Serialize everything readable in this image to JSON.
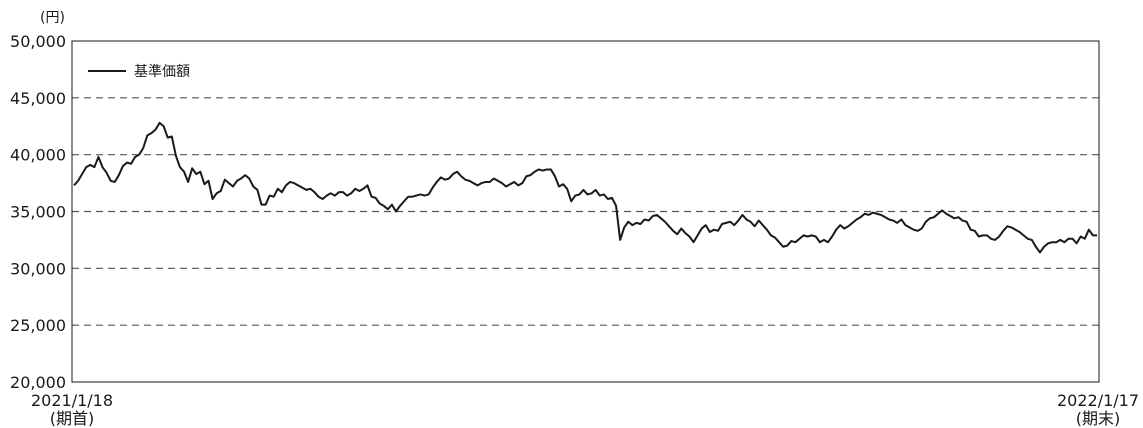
{
  "chart_data": {
    "type": "line",
    "unit_label": "(円)",
    "legend_label": "基準価額",
    "legend_position": "top-left",
    "grid": "horizontal-dashed",
    "ylim": [
      20000,
      50000
    ],
    "yticks": [
      "20,000",
      "25,000",
      "30,000",
      "35,000",
      "40,000",
      "45,000",
      "50,000"
    ],
    "ytick_values": [
      20000,
      25000,
      30000,
      35000,
      40000,
      45000,
      50000
    ],
    "x_start_label": [
      "2021/1/18",
      "(期首)"
    ],
    "x_end_label": [
      "2022/1/17",
      "(期末)"
    ],
    "line_color": "#1a1a1a",
    "series": [
      {
        "name": "基準価額",
        "values": [
          37300,
          37700,
          38300,
          38900,
          39100,
          38900,
          39800,
          38900,
          38400,
          37700,
          37600,
          38200,
          39000,
          39300,
          39200,
          39800,
          40000,
          40600,
          41700,
          41900,
          42200,
          42800,
          42500,
          41500,
          41600,
          39900,
          38900,
          38500,
          37600,
          38800,
          38300,
          38500,
          37400,
          37700,
          36100,
          36600,
          36800,
          37800,
          37500,
          37200,
          37700,
          37900,
          38200,
          37900,
          37200,
          36900,
          35600,
          35600,
          36400,
          36300,
          37000,
          36700,
          37300,
          37600,
          37500,
          37300,
          37100,
          36900,
          37000,
          36700,
          36300,
          36100,
          36400,
          36600,
          36400,
          36700,
          36700,
          36400,
          36600,
          37000,
          36800,
          37000,
          37300,
          36300,
          36200,
          35700,
          35500,
          35200,
          35600,
          35000,
          35500,
          35900,
          36300,
          36300,
          36400,
          36500,
          36400,
          36500,
          37100,
          37600,
          38000,
          37800,
          37900,
          38300,
          38500,
          38100,
          37800,
          37700,
          37500,
          37300,
          37500,
          37600,
          37600,
          37900,
          37700,
          37500,
          37200,
          37400,
          37600,
          37300,
          37500,
          38100,
          38200,
          38500,
          38700,
          38600,
          38700,
          38700,
          38100,
          37200,
          37400,
          37000,
          35900,
          36400,
          36500,
          36900,
          36500,
          36600,
          36900,
          36400,
          36500,
          36100,
          36200,
          35500,
          32500,
          33600,
          34100,
          33800,
          34000,
          33900,
          34300,
          34200,
          34600,
          34700,
          34400,
          34100,
          33700,
          33300,
          33000,
          33500,
          33100,
          32800,
          32300,
          32900,
          33500,
          33800,
          33200,
          33400,
          33300,
          33900,
          34000,
          34100,
          33800,
          34200,
          34700,
          34300,
          34100,
          33700,
          34200,
          33800,
          33400,
          32900,
          32700,
          32300,
          31900,
          32000,
          32400,
          32300,
          32600,
          32900,
          32800,
          32900,
          32800,
          32300,
          32500,
          32300,
          32800,
          33400,
          33800,
          33500,
          33700,
          34000,
          34300,
          34500,
          34800,
          34700,
          34900,
          34800,
          34700,
          34500,
          34300,
          34200,
          34000,
          34300,
          33800,
          33600,
          33400,
          33300,
          33500,
          34100,
          34400,
          34500,
          34800,
          35100,
          34800,
          34600,
          34400,
          34500,
          34200,
          34100,
          33400,
          33300,
          32800,
          32900,
          32900,
          32600,
          32500,
          32800,
          33300,
          33700,
          33600,
          33400,
          33200,
          32900,
          32600,
          32500,
          31900,
          31400,
          31900,
          32200,
          32300,
          32300,
          32500,
          32300,
          32600,
          32600,
          32200,
          32800,
          32600,
          33400,
          32900,
          32900
        ]
      }
    ]
  }
}
